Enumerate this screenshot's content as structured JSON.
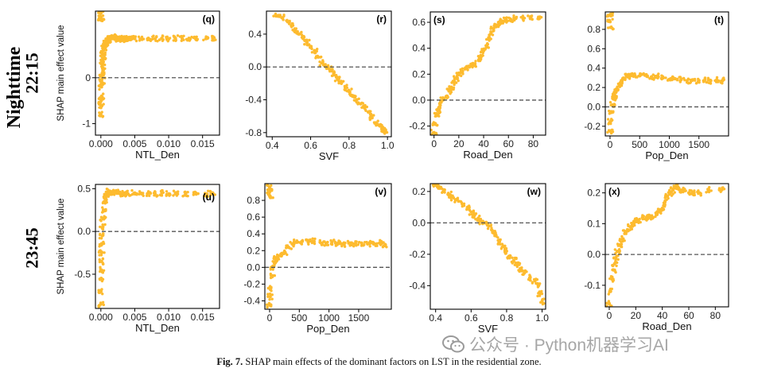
{
  "figure": {
    "row_labels": [
      {
        "lines": [
          "Nighttime",
          "22:15"
        ]
      },
      {
        "lines": [
          "23:45"
        ]
      }
    ],
    "caption": {
      "label": "Fig. 7.",
      "text": "SHAP main effects of the dominant factors on LST in the residential zone."
    },
    "watermark": "公众号 · Python机器学习AI"
  },
  "colors": {
    "points": "#FDBB2F",
    "zero_line": "#555555",
    "frame": "#000000"
  },
  "chart_data": [
    {
      "tag": "(q)",
      "type": "scatter",
      "xlabel": "NTL_Den",
      "ylabel": "SHAP main effect value",
      "xlim": [
        -0.0008,
        0.0175
      ],
      "ylim": [
        -1.25,
        1.45
      ],
      "xticks": [
        0,
        0.005,
        0.01,
        0.015
      ],
      "xtick_labels": [
        "0.000",
        "0.005",
        "0.010",
        "0.015"
      ],
      "yticks": [
        -1,
        0
      ],
      "ytick_labels": [
        "-1",
        "0"
      ],
      "points": [
        [
          0.0,
          1.4
        ],
        [
          0.0,
          1.3
        ],
        [
          5e-05,
          1.25
        ],
        [
          0.0,
          -0.8
        ],
        [
          2e-05,
          -0.6
        ],
        [
          5e-05,
          -0.5
        ],
        [
          0.0001,
          -0.4
        ],
        [
          0.0001,
          -0.2
        ],
        [
          0.00015,
          -0.1
        ],
        [
          0.0002,
          0.0
        ],
        [
          0.0002,
          0.1
        ],
        [
          0.00025,
          0.2
        ],
        [
          0.0003,
          0.3
        ],
        [
          0.0003,
          0.4
        ],
        [
          0.00035,
          0.5
        ],
        [
          0.0004,
          0.6
        ],
        [
          0.0005,
          0.65
        ],
        [
          0.0006,
          0.7
        ],
        [
          0.0007,
          0.72
        ],
        [
          0.0008,
          0.75
        ],
        [
          0.0009,
          0.77
        ],
        [
          0.001,
          0.8
        ],
        [
          0.0011,
          0.82
        ],
        [
          0.0012,
          0.84
        ],
        [
          0.0014,
          0.85
        ],
        [
          0.0015,
          0.87
        ],
        [
          0.0017,
          0.88
        ],
        [
          0.0019,
          0.88
        ],
        [
          0.0021,
          0.85
        ],
        [
          0.0023,
          0.87
        ],
        [
          0.0025,
          0.84
        ],
        [
          0.0027,
          0.86
        ],
        [
          0.003,
          0.85
        ],
        [
          0.0033,
          0.84
        ],
        [
          0.0036,
          0.86
        ],
        [
          0.004,
          0.85
        ],
        [
          0.0045,
          0.84
        ],
        [
          0.005,
          0.85
        ],
        [
          0.006,
          0.84
        ],
        [
          0.007,
          0.86
        ],
        [
          0.008,
          0.85
        ],
        [
          0.009,
          0.86
        ],
        [
          0.01,
          0.84
        ],
        [
          0.011,
          0.86
        ],
        [
          0.012,
          0.85
        ],
        [
          0.013,
          0.86
        ],
        [
          0.014,
          0.84
        ],
        [
          0.0155,
          0.85
        ],
        [
          0.0165,
          0.86
        ]
      ]
    },
    {
      "tag": "(r)",
      "type": "scatter",
      "xlabel": "SVF",
      "ylabel": "",
      "xlim": [
        0.37,
        1.02
      ],
      "ylim": [
        -0.85,
        0.68
      ],
      "xticks": [
        0.4,
        0.6,
        0.8,
        1.0
      ],
      "xtick_labels": [
        "0.4",
        "0.6",
        "0.8",
        "1.0"
      ],
      "yticks": [
        -0.8,
        -0.4,
        0,
        0.4
      ],
      "ytick_labels": [
        "-0.8",
        "-0.4",
        "0.0",
        "0.4"
      ],
      "points": [
        [
          0.42,
          0.62
        ],
        [
          0.45,
          0.6
        ],
        [
          0.48,
          0.55
        ],
        [
          0.5,
          0.5
        ],
        [
          0.52,
          0.45
        ],
        [
          0.54,
          0.4
        ],
        [
          0.56,
          0.35
        ],
        [
          0.58,
          0.3
        ],
        [
          0.6,
          0.25
        ],
        [
          0.62,
          0.2
        ],
        [
          0.64,
          0.12
        ],
        [
          0.66,
          0.05
        ],
        [
          0.68,
          0.0
        ],
        [
          0.7,
          -0.03
        ],
        [
          0.72,
          -0.08
        ],
        [
          0.74,
          -0.15
        ],
        [
          0.76,
          -0.2
        ],
        [
          0.78,
          -0.25
        ],
        [
          0.8,
          -0.3
        ],
        [
          0.82,
          -0.35
        ],
        [
          0.84,
          -0.4
        ],
        [
          0.86,
          -0.45
        ],
        [
          0.88,
          -0.5
        ],
        [
          0.9,
          -0.55
        ],
        [
          0.92,
          -0.62
        ],
        [
          0.94,
          -0.68
        ],
        [
          0.96,
          -0.72
        ],
        [
          0.98,
          -0.75
        ],
        [
          0.99,
          -0.78
        ]
      ]
    },
    {
      "tag": "(s)",
      "type": "scatter",
      "xlabel": "Road_Den",
      "ylabel": "",
      "xlim": [
        -3,
        90
      ],
      "ylim": [
        -0.27,
        0.68
      ],
      "xticks": [
        0,
        20,
        40,
        60,
        80
      ],
      "xtick_labels": [
        "0",
        "20",
        "40",
        "60",
        "80"
      ],
      "yticks": [
        -0.2,
        0,
        0.2,
        0.4,
        0.6
      ],
      "ytick_labels": [
        "-0.2",
        "0.0",
        "0.2",
        "0.4",
        "0.6"
      ],
      "points": [
        [
          0,
          -0.25
        ],
        [
          1,
          -0.18
        ],
        [
          2,
          -0.12
        ],
        [
          3,
          -0.08
        ],
        [
          5,
          -0.04
        ],
        [
          7,
          0.0
        ],
        [
          10,
          0.03
        ],
        [
          12,
          0.07
        ],
        [
          14,
          0.1
        ],
        [
          16,
          0.14
        ],
        [
          18,
          0.17
        ],
        [
          20,
          0.2
        ],
        [
          22,
          0.22
        ],
        [
          25,
          0.24
        ],
        [
          28,
          0.26
        ],
        [
          30,
          0.27
        ],
        [
          33,
          0.28
        ],
        [
          36,
          0.31
        ],
        [
          38,
          0.34
        ],
        [
          40,
          0.38
        ],
        [
          42,
          0.42
        ],
        [
          44,
          0.47
        ],
        [
          46,
          0.52
        ],
        [
          48,
          0.55
        ],
        [
          50,
          0.58
        ],
        [
          52,
          0.6
        ],
        [
          55,
          0.61
        ],
        [
          58,
          0.62
        ],
        [
          62,
          0.62
        ],
        [
          66,
          0.63
        ],
        [
          72,
          0.63
        ],
        [
          78,
          0.64
        ],
        [
          85,
          0.63
        ]
      ]
    },
    {
      "tag": "(t)",
      "type": "scatter",
      "xlabel": "Pop_Den",
      "ylabel": "",
      "xlim": [
        -80,
        2000
      ],
      "ylim": [
        -0.3,
        0.98
      ],
      "xticks": [
        0,
        500,
        1000,
        1500
      ],
      "xtick_labels": [
        "0",
        "500",
        "1000",
        "1500"
      ],
      "yticks": [
        -0.2,
        0,
        0.2,
        0.4,
        0.6,
        0.8
      ],
      "ytick_labels": [
        "-0.2",
        "0.0",
        "0.2",
        "0.4",
        "0.6",
        "0.8"
      ],
      "points": [
        [
          0,
          0.95
        ],
        [
          0,
          0.88
        ],
        [
          10,
          0.82
        ],
        [
          0,
          -0.25
        ],
        [
          10,
          -0.15
        ],
        [
          20,
          -0.05
        ],
        [
          40,
          0.02
        ],
        [
          60,
          0.08
        ],
        [
          80,
          0.12
        ],
        [
          100,
          0.15
        ],
        [
          130,
          0.18
        ],
        [
          160,
          0.22
        ],
        [
          200,
          0.26
        ],
        [
          250,
          0.29
        ],
        [
          300,
          0.31
        ],
        [
          350,
          0.32
        ],
        [
          400,
          0.33
        ],
        [
          500,
          0.32
        ],
        [
          600,
          0.33
        ],
        [
          700,
          0.31
        ],
        [
          800,
          0.32
        ],
        [
          900,
          0.3
        ],
        [
          1000,
          0.28
        ],
        [
          1100,
          0.29
        ],
        [
          1200,
          0.28
        ],
        [
          1300,
          0.27
        ],
        [
          1400,
          0.28
        ],
        [
          1500,
          0.27
        ],
        [
          1600,
          0.28
        ],
        [
          1700,
          0.27
        ],
        [
          1800,
          0.28
        ],
        [
          1900,
          0.27
        ]
      ]
    },
    {
      "tag": "(u)",
      "type": "scatter",
      "xlabel": "NTL_Den",
      "ylabel": "SHAP main effect value",
      "xlim": [
        -0.0008,
        0.0175
      ],
      "ylim": [
        -0.9,
        0.55
      ],
      "xticks": [
        0,
        0.005,
        0.01,
        0.015
      ],
      "xtick_labels": [
        "0.000",
        "0.005",
        "0.010",
        "0.015"
      ],
      "yticks": [
        -0.5,
        0,
        0.5
      ],
      "ytick_labels": [
        "-0.5",
        "0.0",
        "0.5"
      ],
      "points": [
        [
          0.0,
          -0.85
        ],
        [
          2e-05,
          -0.7
        ],
        [
          5e-05,
          -0.55
        ],
        [
          8e-05,
          -0.45
        ],
        [
          0.0001,
          -0.35
        ],
        [
          0.00012,
          -0.25
        ],
        [
          0.00015,
          -0.15
        ],
        [
          0.0002,
          -0.05
        ],
        [
          0.00025,
          0.05
        ],
        [
          0.0003,
          0.15
        ],
        [
          0.0004,
          0.25
        ],
        [
          0.0005,
          0.35
        ],
        [
          0.0006,
          0.4
        ],
        [
          0.0008,
          0.43
        ],
        [
          0.001,
          0.46
        ],
        [
          0.0012,
          0.47
        ],
        [
          0.0015,
          0.46
        ],
        [
          0.0018,
          0.45
        ],
        [
          0.0022,
          0.46
        ],
        [
          0.0026,
          0.45
        ],
        [
          0.003,
          0.44
        ],
        [
          0.0035,
          0.45
        ],
        [
          0.004,
          0.44
        ],
        [
          0.005,
          0.45
        ],
        [
          0.006,
          0.44
        ],
        [
          0.007,
          0.45
        ],
        [
          0.008,
          0.44
        ],
        [
          0.009,
          0.45
        ],
        [
          0.01,
          0.44
        ],
        [
          0.011,
          0.45
        ],
        [
          0.0125,
          0.44
        ],
        [
          0.014,
          0.45
        ],
        [
          0.0155,
          0.44
        ],
        [
          0.0165,
          0.45
        ]
      ]
    },
    {
      "tag": "(v)",
      "type": "scatter",
      "xlabel": "Pop_Den",
      "ylabel": "",
      "xlim": [
        -80,
        2050
      ],
      "ylim": [
        -0.5,
        1.0
      ],
      "xticks": [
        0,
        500,
        1000,
        1500
      ],
      "xtick_labels": [
        "0",
        "500",
        "1000",
        "1500"
      ],
      "yticks": [
        -0.4,
        -0.2,
        0,
        0.2,
        0.4,
        0.6,
        0.8
      ],
      "ytick_labels": [
        "-0.4",
        "-0.2",
        "0.0",
        "0.2",
        "0.4",
        "0.6",
        "0.8"
      ],
      "points": [
        [
          0,
          0.95
        ],
        [
          0,
          0.9
        ],
        [
          10,
          0.85
        ],
        [
          0,
          -0.45
        ],
        [
          10,
          -0.35
        ],
        [
          20,
          -0.25
        ],
        [
          40,
          -0.1
        ],
        [
          60,
          0.0
        ],
        [
          80,
          0.05
        ],
        [
          100,
          0.1
        ],
        [
          140,
          0.12
        ],
        [
          200,
          0.14
        ],
        [
          260,
          0.18
        ],
        [
          320,
          0.24
        ],
        [
          380,
          0.28
        ],
        [
          450,
          0.3
        ],
        [
          550,
          0.31
        ],
        [
          650,
          0.3
        ],
        [
          750,
          0.31
        ],
        [
          850,
          0.3
        ],
        [
          950,
          0.29
        ],
        [
          1050,
          0.3
        ],
        [
          1150,
          0.29
        ],
        [
          1250,
          0.28
        ],
        [
          1350,
          0.29
        ],
        [
          1450,
          0.28
        ],
        [
          1550,
          0.29
        ],
        [
          1650,
          0.28
        ],
        [
          1750,
          0.28
        ],
        [
          1850,
          0.29
        ],
        [
          1950,
          0.27
        ]
      ]
    },
    {
      "tag": "(w)",
      "type": "scatter",
      "xlabel": "SVF",
      "ylabel": "",
      "xlim": [
        0.37,
        1.02
      ],
      "ylim": [
        -0.55,
        0.25
      ],
      "xticks": [
        0.4,
        0.6,
        0.8,
        1.0
      ],
      "xtick_labels": [
        "0.4",
        "0.6",
        "0.8",
        "1.0"
      ],
      "yticks": [
        -0.4,
        -0.2,
        0,
        0.2
      ],
      "ytick_labels": [
        "-0.4",
        "-0.2",
        "0.0",
        "0.2"
      ],
      "points": [
        [
          0.4,
          0.24
        ],
        [
          0.42,
          0.23
        ],
        [
          0.45,
          0.21
        ],
        [
          0.48,
          0.18
        ],
        [
          0.5,
          0.16
        ],
        [
          0.52,
          0.15
        ],
        [
          0.55,
          0.12
        ],
        [
          0.58,
          0.1
        ],
        [
          0.6,
          0.07
        ],
        [
          0.62,
          0.05
        ],
        [
          0.64,
          0.03
        ],
        [
          0.66,
          0.01
        ],
        [
          0.68,
          0.0
        ],
        [
          0.7,
          -0.02
        ],
        [
          0.72,
          -0.05
        ],
        [
          0.74,
          -0.08
        ],
        [
          0.76,
          -0.12
        ],
        [
          0.78,
          -0.15
        ],
        [
          0.8,
          -0.18
        ],
        [
          0.82,
          -0.21
        ],
        [
          0.84,
          -0.24
        ],
        [
          0.86,
          -0.27
        ],
        [
          0.88,
          -0.3
        ],
        [
          0.9,
          -0.32
        ],
        [
          0.93,
          -0.35
        ],
        [
          0.96,
          -0.37
        ],
        [
          0.98,
          -0.4
        ],
        [
          0.99,
          -0.45
        ],
        [
          1.0,
          -0.5
        ]
      ]
    },
    {
      "tag": "(x)",
      "type": "scatter",
      "xlabel": "Road_Den",
      "ylabel": "",
      "xlim": [
        -3,
        90
      ],
      "ylim": [
        -0.17,
        0.23
      ],
      "xticks": [
        0,
        20,
        40,
        60,
        80
      ],
      "xtick_labels": [
        "0",
        "20",
        "40",
        "60",
        "80"
      ],
      "yticks": [
        -0.1,
        0,
        0.1,
        0.2
      ],
      "ytick_labels": [
        "-0.1",
        "0.0",
        "0.1",
        "0.2"
      ],
      "points": [
        [
          0,
          -0.16
        ],
        [
          1,
          -0.12
        ],
        [
          2,
          -0.08
        ],
        [
          3,
          -0.05
        ],
        [
          4,
          -0.03
        ],
        [
          5,
          -0.01
        ],
        [
          6,
          0.01
        ],
        [
          8,
          0.03
        ],
        [
          10,
          0.05
        ],
        [
          12,
          0.07
        ],
        [
          14,
          0.08
        ],
        [
          16,
          0.09
        ],
        [
          18,
          0.1
        ],
        [
          20,
          0.11
        ],
        [
          22,
          0.11
        ],
        [
          25,
          0.12
        ],
        [
          28,
          0.12
        ],
        [
          30,
          0.12
        ],
        [
          33,
          0.12
        ],
        [
          36,
          0.13
        ],
        [
          38,
          0.14
        ],
        [
          40,
          0.15
        ],
        [
          42,
          0.17
        ],
        [
          44,
          0.19
        ],
        [
          46,
          0.2
        ],
        [
          48,
          0.21
        ],
        [
          50,
          0.22
        ],
        [
          53,
          0.21
        ],
        [
          56,
          0.21
        ],
        [
          60,
          0.2
        ],
        [
          64,
          0.2
        ],
        [
          68,
          0.2
        ],
        [
          75,
          0.21
        ],
        [
          85,
          0.21
        ]
      ]
    }
  ]
}
